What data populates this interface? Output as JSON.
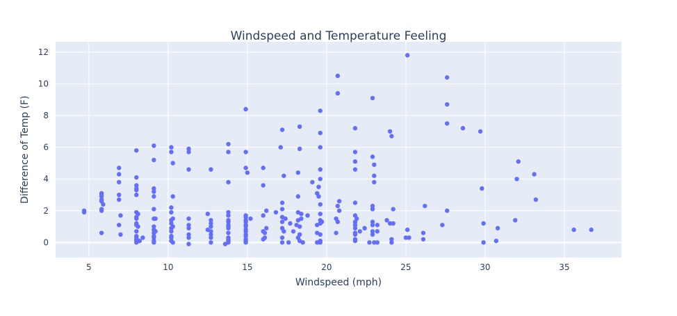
{
  "chart_data": {
    "type": "scatter",
    "title": "Windspeed and Temperature Feeling",
    "xlabel": "Windspeed (mph)",
    "ylabel": "Difference of Temp (F)",
    "xlim": [
      2.9,
      38.6
    ],
    "ylim": [
      -0.95,
      12.65
    ],
    "x_ticks": [
      5,
      10,
      15,
      20,
      25,
      30,
      35
    ],
    "y_ticks": [
      0,
      2,
      4,
      6,
      8,
      10,
      12
    ],
    "grid": true,
    "legend": "none",
    "colors": {
      "marker": "#636efa",
      "plot_bg": "#e5ecf6",
      "grid": "#ffffff",
      "text": "#2a3f5f"
    },
    "series": [
      {
        "points": [
          [
            4.7,
            2.0
          ],
          [
            4.7,
            1.9
          ],
          [
            5.8,
            3.1
          ],
          [
            5.8,
            3.0
          ],
          [
            5.8,
            2.9
          ],
          [
            5.8,
            2.7
          ],
          [
            5.8,
            2.6
          ],
          [
            5.8,
            2.1
          ],
          [
            5.8,
            2.0
          ],
          [
            5.8,
            0.6
          ],
          [
            5.9,
            2.4
          ],
          [
            6.9,
            4.7
          ],
          [
            6.9,
            4.3
          ],
          [
            6.9,
            3.8
          ],
          [
            6.9,
            3.0
          ],
          [
            6.9,
            2.7
          ],
          [
            6.9,
            1.1
          ],
          [
            7.0,
            1.7
          ],
          [
            7.0,
            0.5
          ],
          [
            8.0,
            5.8
          ],
          [
            8.0,
            4.1
          ],
          [
            8.0,
            3.6
          ],
          [
            8.0,
            3.4
          ],
          [
            8.0,
            3.3
          ],
          [
            8.0,
            3.0
          ],
          [
            8.0,
            1.9
          ],
          [
            8.0,
            1.6
          ],
          [
            8.0,
            1.5
          ],
          [
            8.0,
            1.2
          ],
          [
            8.0,
            1.1
          ],
          [
            8.0,
            0.7
          ],
          [
            8.0,
            0.4
          ],
          [
            8.0,
            0.3
          ],
          [
            8.0,
            0.2
          ],
          [
            8.0,
            0.1
          ],
          [
            8.0,
            0.0
          ],
          [
            8.1,
            1.8
          ],
          [
            8.1,
            1.0
          ],
          [
            8.2,
            0.1
          ],
          [
            8.4,
            0.3
          ],
          [
            9.1,
            6.1
          ],
          [
            9.1,
            5.2
          ],
          [
            9.1,
            3.4
          ],
          [
            9.1,
            3.2
          ],
          [
            9.1,
            2.9
          ],
          [
            9.1,
            2.1
          ],
          [
            9.1,
            1.5
          ],
          [
            9.1,
            1.0
          ],
          [
            9.1,
            0.8
          ],
          [
            9.1,
            0.6
          ],
          [
            9.1,
            0.4
          ],
          [
            9.1,
            0.3
          ],
          [
            9.1,
            0.1
          ],
          [
            9.1,
            0.0
          ],
          [
            9.2,
            1.5
          ],
          [
            9.2,
            0.7
          ],
          [
            10.2,
            6.0
          ],
          [
            10.2,
            5.7
          ],
          [
            10.2,
            2.2
          ],
          [
            10.2,
            1.9
          ],
          [
            10.2,
            1.4
          ],
          [
            10.2,
            1.2
          ],
          [
            10.2,
            0.9
          ],
          [
            10.2,
            0.7
          ],
          [
            10.2,
            0.4
          ],
          [
            10.2,
            0.3
          ],
          [
            10.2,
            0.1
          ],
          [
            10.3,
            5.0
          ],
          [
            10.3,
            2.9
          ],
          [
            10.3,
            1.5
          ],
          [
            10.3,
            1.0
          ],
          [
            10.3,
            0.0
          ],
          [
            11.3,
            5.9
          ],
          [
            11.3,
            5.7
          ],
          [
            11.3,
            4.6
          ],
          [
            11.3,
            1.5
          ],
          [
            11.3,
            1.1
          ],
          [
            11.3,
            0.9
          ],
          [
            11.3,
            0.5
          ],
          [
            11.3,
            0.3
          ],
          [
            11.3,
            -0.1
          ],
          [
            12.5,
            1.8
          ],
          [
            12.5,
            0.8
          ],
          [
            12.7,
            4.6
          ],
          [
            12.7,
            1.4
          ],
          [
            12.7,
            1.2
          ],
          [
            12.7,
            1.0
          ],
          [
            12.7,
            0.7
          ],
          [
            12.7,
            0.5
          ],
          [
            12.7,
            0.3
          ],
          [
            12.7,
            0.0
          ],
          [
            13.8,
            6.2
          ],
          [
            13.8,
            5.7
          ],
          [
            13.8,
            3.8
          ],
          [
            13.8,
            1.9
          ],
          [
            13.8,
            1.7
          ],
          [
            13.8,
            1.4
          ],
          [
            13.8,
            1.3
          ],
          [
            13.8,
            1.1
          ],
          [
            13.8,
            1.0
          ],
          [
            13.8,
            0.9
          ],
          [
            13.8,
            0.6
          ],
          [
            13.8,
            0.3
          ],
          [
            13.8,
            0.2
          ],
          [
            13.8,
            0.1
          ],
          [
            13.8,
            0.0
          ],
          [
            13.6,
            -0.1
          ],
          [
            14.9,
            8.4
          ],
          [
            14.9,
            5.7
          ],
          [
            14.9,
            4.7
          ],
          [
            14.9,
            1.7
          ],
          [
            14.9,
            1.6
          ],
          [
            14.9,
            1.4
          ],
          [
            14.9,
            1.3
          ],
          [
            14.9,
            1.1
          ],
          [
            14.9,
            1.0
          ],
          [
            14.9,
            0.8
          ],
          [
            14.9,
            0.7
          ],
          [
            14.9,
            0.5
          ],
          [
            14.9,
            0.4
          ],
          [
            14.9,
            0.2
          ],
          [
            14.9,
            0.1
          ],
          [
            14.9,
            0.0
          ],
          [
            15.0,
            4.4
          ],
          [
            15.2,
            1.5
          ],
          [
            16.0,
            4.7
          ],
          [
            16.0,
            3.6
          ],
          [
            16.0,
            1.7
          ],
          [
            16.0,
            0.7
          ],
          [
            16.0,
            0.2
          ],
          [
            16.1,
            0.6
          ],
          [
            16.1,
            0.3
          ],
          [
            16.2,
            2.0
          ],
          [
            16.2,
            0.9
          ],
          [
            16.8,
            1.9
          ],
          [
            17.2,
            7.1
          ],
          [
            17.1,
            6.0
          ],
          [
            17.3,
            4.2
          ],
          [
            17.2,
            2.5
          ],
          [
            17.2,
            2.1
          ],
          [
            17.2,
            1.6
          ],
          [
            17.2,
            1.3
          ],
          [
            17.2,
            0.9
          ],
          [
            17.3,
            0.7
          ],
          [
            17.2,
            0.3
          ],
          [
            17.2,
            0.0
          ],
          [
            17.4,
            1.5
          ],
          [
            17.6,
            0.0
          ],
          [
            17.7,
            1.2
          ],
          [
            17.9,
            0.7
          ],
          [
            18.2,
            1.9
          ],
          [
            18.3,
            7.3
          ],
          [
            18.3,
            5.9
          ],
          [
            18.2,
            4.4
          ],
          [
            18.2,
            2.9
          ],
          [
            18.2,
            1.4
          ],
          [
            18.1,
            1.1
          ],
          [
            18.3,
            0.5
          ],
          [
            18.4,
            1.8
          ],
          [
            18.3,
            1.0
          ],
          [
            18.2,
            0.3
          ],
          [
            18.3,
            0.1
          ],
          [
            18.5,
            0.0
          ],
          [
            18.4,
            1.5
          ],
          [
            18.8,
            1.7
          ],
          [
            19.1,
            3.8
          ],
          [
            19.4,
            3.1
          ],
          [
            19.6,
            8.3
          ],
          [
            19.6,
            6.9
          ],
          [
            19.6,
            6.0
          ],
          [
            19.6,
            4.6
          ],
          [
            19.6,
            4.0
          ],
          [
            19.5,
            3.5
          ],
          [
            19.5,
            2.9
          ],
          [
            19.6,
            2.4
          ],
          [
            19.6,
            1.8
          ],
          [
            19.6,
            1.4
          ],
          [
            19.6,
            1.2
          ],
          [
            19.4,
            1.1
          ],
          [
            19.4,
            0.6
          ],
          [
            19.6,
            0.5
          ],
          [
            19.6,
            0.1
          ],
          [
            19.6,
            0.0
          ],
          [
            19.4,
            0.0
          ],
          [
            19.7,
            1.3
          ],
          [
            20.7,
            10.5
          ],
          [
            20.7,
            9.4
          ],
          [
            20.8,
            2.6
          ],
          [
            20.7,
            2.3
          ],
          [
            20.6,
            1.5
          ],
          [
            20.7,
            1.3
          ],
          [
            20.8,
            2.0
          ],
          [
            20.6,
            0.6
          ],
          [
            21.8,
            7.2
          ],
          [
            21.8,
            5.7
          ],
          [
            21.8,
            5.1
          ],
          [
            21.8,
            4.6
          ],
          [
            21.8,
            2.5
          ],
          [
            21.8,
            1.7
          ],
          [
            21.8,
            1.3
          ],
          [
            21.8,
            1.1
          ],
          [
            21.8,
            0.9
          ],
          [
            21.8,
            0.6
          ],
          [
            21.8,
            0.5
          ],
          [
            21.8,
            0.2
          ],
          [
            21.8,
            0.1
          ],
          [
            21.9,
            1.5
          ],
          [
            22.1,
            0.7
          ],
          [
            22.4,
            0.9
          ],
          [
            22.7,
            0.0
          ],
          [
            22.9,
            9.1
          ],
          [
            22.9,
            5.4
          ],
          [
            23.0,
            4.9
          ],
          [
            23.0,
            4.2
          ],
          [
            23.0,
            3.8
          ],
          [
            22.9,
            2.3
          ],
          [
            22.9,
            2.1
          ],
          [
            22.9,
            1.3
          ],
          [
            22.9,
            1.1
          ],
          [
            22.9,
            0.7
          ],
          [
            22.9,
            0.5
          ],
          [
            23.0,
            0.0
          ],
          [
            23.2,
            1.1
          ],
          [
            23.2,
            0.7
          ],
          [
            23.2,
            0.0
          ],
          [
            23.8,
            1.4
          ],
          [
            24.0,
            7.0
          ],
          [
            24.1,
            6.7
          ],
          [
            24.0,
            1.2
          ],
          [
            24.1,
            0.2
          ],
          [
            24.1,
            0.0
          ],
          [
            24.2,
            2.1
          ],
          [
            24.2,
            1.2
          ],
          [
            25.0,
            0.3
          ],
          [
            25.1,
            11.8
          ],
          [
            25.1,
            0.8
          ],
          [
            25.2,
            0.3
          ],
          [
            26.2,
            2.3
          ],
          [
            26.1,
            0.6
          ],
          [
            26.1,
            0.2
          ],
          [
            27.3,
            1.1
          ],
          [
            27.6,
            10.4
          ],
          [
            27.6,
            8.7
          ],
          [
            27.6,
            7.5
          ],
          [
            27.6,
            2.0
          ],
          [
            28.6,
            7.2
          ],
          [
            29.7,
            7.0
          ],
          [
            29.8,
            3.4
          ],
          [
            29.9,
            1.2
          ],
          [
            29.9,
            0.0
          ],
          [
            30.7,
            0.1
          ],
          [
            30.8,
            0.9
          ],
          [
            31.9,
            1.4
          ],
          [
            32.1,
            5.1
          ],
          [
            32.0,
            4.0
          ],
          [
            33.1,
            4.3
          ],
          [
            33.2,
            2.7
          ],
          [
            35.6,
            0.8
          ],
          [
            36.7,
            0.8
          ]
        ]
      }
    ]
  }
}
